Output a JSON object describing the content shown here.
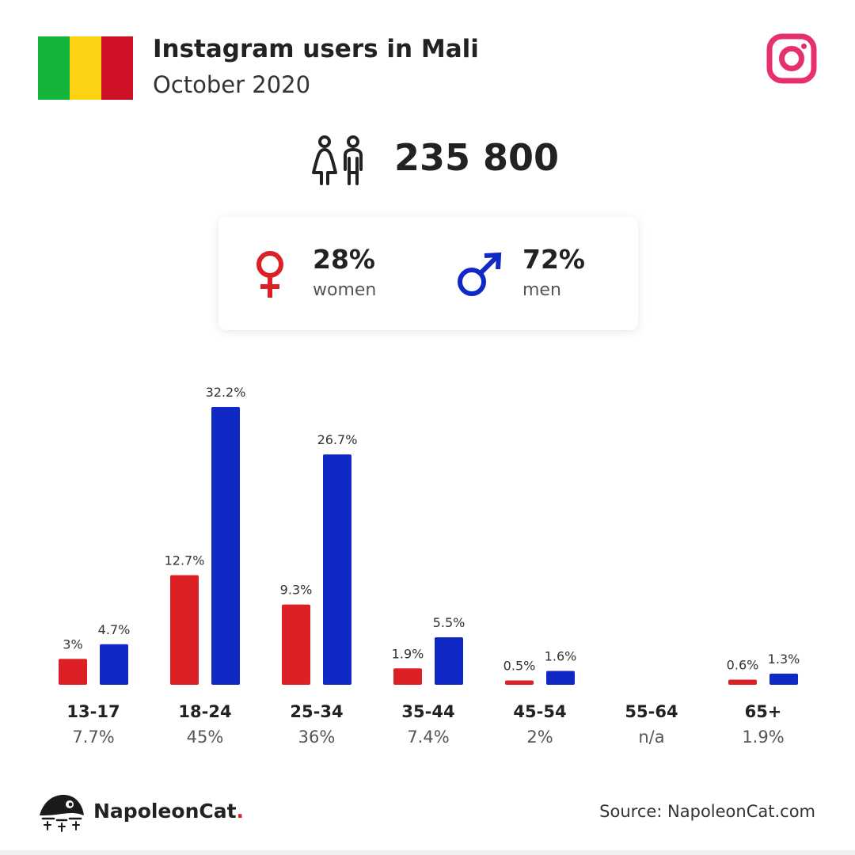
{
  "header": {
    "title": "Instagram users in Mali",
    "subtitle": "October 2020"
  },
  "flag_colors": [
    "#14b53a",
    "#fcd116",
    "#ce1126"
  ],
  "icons": {
    "platform": "instagram-icon",
    "users": "people-icon",
    "female": "female-symbol-icon",
    "male": "male-symbol-icon",
    "logo": "napoleoncat-logo-icon"
  },
  "total_users": "235 800",
  "gender": {
    "women": {
      "pct": "28%",
      "label": "women",
      "color": "#dd1f26"
    },
    "men": {
      "pct": "72%",
      "label": "men",
      "color": "#1028c4"
    }
  },
  "chart_data": {
    "type": "bar",
    "title": "",
    "xlabel": "",
    "ylabel": "",
    "categories": [
      "13-17",
      "18-24",
      "25-34",
      "35-44",
      "45-54",
      "55-64",
      "65+"
    ],
    "category_totals": [
      "7.7%",
      "45%",
      "36%",
      "7.4%",
      "2%",
      "n/a",
      "1.9%"
    ],
    "series": [
      {
        "name": "women",
        "color": "#dd1f26",
        "values": [
          3,
          12.7,
          9.3,
          1.9,
          0.5,
          null,
          0.6
        ],
        "labels": [
          "3%",
          "12.7%",
          "9.3%",
          "1.9%",
          "0.5%",
          "",
          "0.6%"
        ]
      },
      {
        "name": "men",
        "color": "#1028c4",
        "values": [
          4.7,
          32.2,
          26.7,
          5.5,
          1.6,
          null,
          1.3
        ],
        "labels": [
          "4.7%",
          "32.2%",
          "26.7%",
          "5.5%",
          "1.6%",
          "",
          "1.3%"
        ]
      }
    ],
    "ylim": [
      0,
      32.2
    ],
    "grid": false,
    "legend": "none"
  },
  "footer": {
    "brand": "NapoleonCat",
    "brand_dot": ".",
    "source": "Source: NapoleonCat.com"
  }
}
